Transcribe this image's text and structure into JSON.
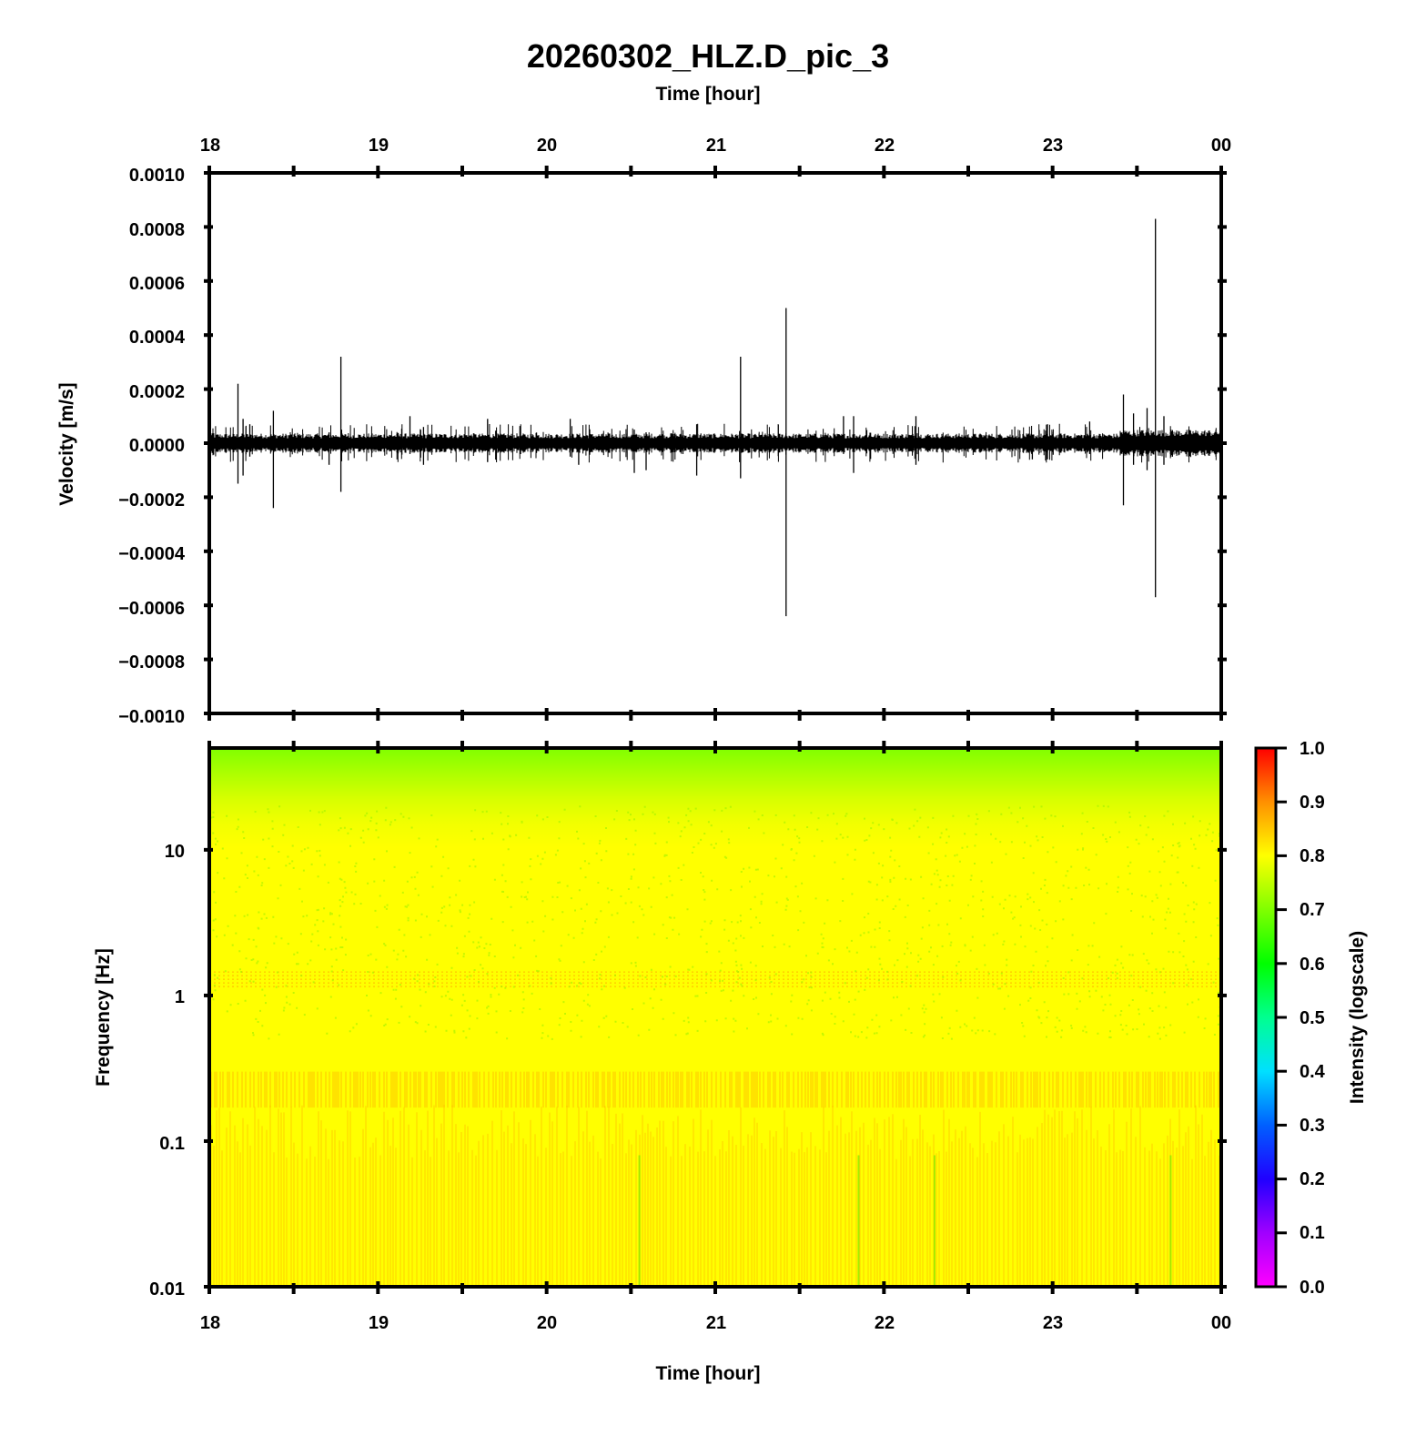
{
  "figure": {
    "title": "20260302_HLZ.D_pic_3",
    "top_xlabel": "Time [hour]",
    "bottom_xlabel": "Time [hour]"
  },
  "chart_data": [
    {
      "type": "line",
      "ylabel": "Velocity [m/s]",
      "xlabel": "Time [hour]",
      "xlim": [
        18,
        24
      ],
      "x_ticks": [
        "18",
        "19",
        "20",
        "21",
        "22",
        "23",
        "00"
      ],
      "ylim": [
        -0.001,
        0.001
      ],
      "y_ticks": [
        "0.0010",
        "0.0008",
        "0.0006",
        "0.0004",
        "0.0002",
        "0.0000",
        "−0.0002",
        "−0.0004",
        "−0.0006",
        "−0.0008",
        "−0.0010"
      ],
      "y_tick_values": [
        0.001,
        0.0008,
        0.0006,
        0.0004,
        0.0002,
        0,
        -0.0002,
        -0.0004,
        -0.0006,
        -0.0008,
        -0.001
      ],
      "line_color": "#000000",
      "background_noise_amplitude": 3e-05,
      "spikes": [
        {
          "x": 18.17,
          "max": 0.00022,
          "min": -0.00015
        },
        {
          "x": 18.2,
          "max": 9e-05,
          "min": -0.00012
        },
        {
          "x": 18.24,
          "max": 7e-05,
          "min": -5e-05
        },
        {
          "x": 18.38,
          "max": 0.00012,
          "min": -0.00024
        },
        {
          "x": 18.78,
          "max": 0.00032,
          "min": -0.00018
        },
        {
          "x": 18.71,
          "max": 4e-05,
          "min": -8e-05
        },
        {
          "x": 19.19,
          "max": 0.0001,
          "min": -4e-05
        },
        {
          "x": 19.27,
          "max": 6e-05,
          "min": -8e-05
        },
        {
          "x": 19.65,
          "max": 9e-05,
          "min": -7e-05
        },
        {
          "x": 20.14,
          "max": 9e-05,
          "min": -5e-05
        },
        {
          "x": 20.19,
          "max": 3e-05,
          "min": -8e-05
        },
        {
          "x": 20.52,
          "max": 5e-05,
          "min": -0.00011
        },
        {
          "x": 20.59,
          "max": 4e-05,
          "min": -0.0001
        },
        {
          "x": 20.89,
          "max": 7e-05,
          "min": -0.00012
        },
        {
          "x": 21.15,
          "max": 0.00032,
          "min": -0.00013
        },
        {
          "x": 21.42,
          "max": 0.0005,
          "min": -0.00064
        },
        {
          "x": 21.76,
          "max": 0.0001,
          "min": -4e-05
        },
        {
          "x": 21.82,
          "max": 0.0001,
          "min": -0.00011
        },
        {
          "x": 22.19,
          "max": 0.0001,
          "min": -8e-05
        },
        {
          "x": 22.88,
          "max": 3e-05,
          "min": -6e-05
        },
        {
          "x": 22.97,
          "max": 7e-05,
          "min": -6e-05
        },
        {
          "x": 23.22,
          "max": 8e-05,
          "min": -4e-05
        },
        {
          "x": 23.42,
          "max": 0.00018,
          "min": -0.00023
        },
        {
          "x": 23.48,
          "max": 0.00011,
          "min": -8e-05
        },
        {
          "x": 23.56,
          "max": 0.00013,
          "min": -0.0001
        },
        {
          "x": 23.61,
          "max": 0.00083,
          "min": -0.00057
        },
        {
          "x": 23.66,
          "max": 0.0001,
          "min": -8e-05
        }
      ]
    },
    {
      "type": "heatmap",
      "ylabel": "Frequency [Hz]",
      "xlabel": "Time [hour]",
      "xlim": [
        18,
        24
      ],
      "x_ticks": [
        "18",
        "19",
        "20",
        "21",
        "22",
        "23",
        "00"
      ],
      "ylim": [
        0.01,
        50
      ],
      "y_scale": "log",
      "y_ticks": [
        "10",
        "1",
        "0.1",
        "0.01"
      ],
      "y_tick_values": [
        10,
        1,
        0.1,
        0.01
      ],
      "colorbar": {
        "label": "Intensity (logscale)",
        "range": [
          0,
          1
        ],
        "ticks": [
          "1.0",
          "0.9",
          "0.8",
          "0.7",
          "0.6",
          "0.5",
          "0.4",
          "0.3",
          "0.2",
          "0.1",
          "0.0"
        ],
        "colors": [
          "#ff00ff",
          "#8800ff",
          "#0000ff",
          "#0088ff",
          "#00ffff",
          "#00ff88",
          "#00ff00",
          "#88ff00",
          "#ffff00",
          "#ff8800",
          "#ff0000"
        ]
      },
      "intensity_profile": [
        {
          "freq": 50,
          "intensity": 0.66
        },
        {
          "freq": 20,
          "intensity": 0.72
        },
        {
          "freq": 10,
          "intensity": 0.76
        },
        {
          "freq": 3,
          "intensity": 0.8
        },
        {
          "freq": 1.2,
          "intensity": 0.85
        },
        {
          "freq": 0.5,
          "intensity": 0.82
        },
        {
          "freq": 0.2,
          "intensity": 0.85
        },
        {
          "freq": 0.05,
          "intensity": 0.81
        },
        {
          "freq": 0.01,
          "intensity": 0.84
        }
      ]
    }
  ]
}
